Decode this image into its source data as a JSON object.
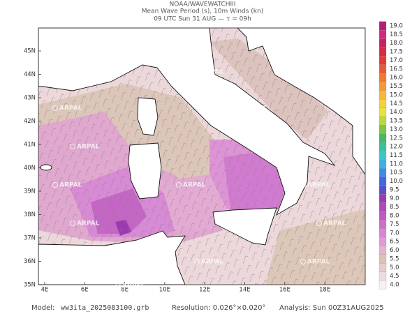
{
  "header": {
    "title": "NOAA/WAVEWATCHIII",
    "subtitle": "Mean Wave Period (s), 10m Winds (kn)",
    "time": "09 UTC Sun 31 AUG  —  τ = 09h"
  },
  "lat_labels": [
    "45N",
    "44N",
    "43N",
    "42N",
    "41N",
    "40N",
    "39N",
    "38N",
    "37N",
    "36N",
    "35N"
  ],
  "lon_labels": [
    "4E",
    "6E",
    "8E",
    "10E",
    "12E",
    "14E",
    "16E",
    "18E"
  ],
  "colorbar": {
    "labels": [
      "4.0",
      "4.5",
      "5.0",
      "5.5",
      "6.0",
      "6.5",
      "7.0",
      "7.5",
      "8.0",
      "8.5",
      "9.0",
      "9.5",
      "10.0",
      "10.5",
      "11.0",
      "11.5",
      "12.0",
      "12.5",
      "13.0",
      "13.5",
      "14.0",
      "14.5",
      "15.0",
      "15.5",
      "16.0",
      "16.5",
      "17.0",
      "17.5",
      "18.0",
      "18.5",
      "19.0"
    ],
    "colors": [
      "#f6f0f2",
      "#eedcdc",
      "#e6cccf",
      "#dbc3b6",
      "#e6b3cf",
      "#e09ad6",
      "#d886d4",
      "#cf6fcd",
      "#c15ac1",
      "#b04ab8",
      "#9a3cb0",
      "#5a4fc8",
      "#3f6bd8",
      "#3c8fe0",
      "#3fb0e0",
      "#3ec6c6",
      "#3cbf9a",
      "#49b860",
      "#7fc447",
      "#bcd63c",
      "#e8e23c",
      "#f3d23a",
      "#f6b83a",
      "#f59a35",
      "#ef7a33",
      "#e85a35",
      "#e03a3a",
      "#d62b4a",
      "#c8235f",
      "#d0287e",
      "#b51f7a"
    ]
  },
  "watermark": "ARPAL",
  "footer": {
    "model_label": "Model:",
    "model": "ww3ita_2025083100.grb",
    "resolution": "Resolution: 0.026°×0.020°",
    "analysis": "Analysis: Sun 00Z31AUG2025"
  }
}
